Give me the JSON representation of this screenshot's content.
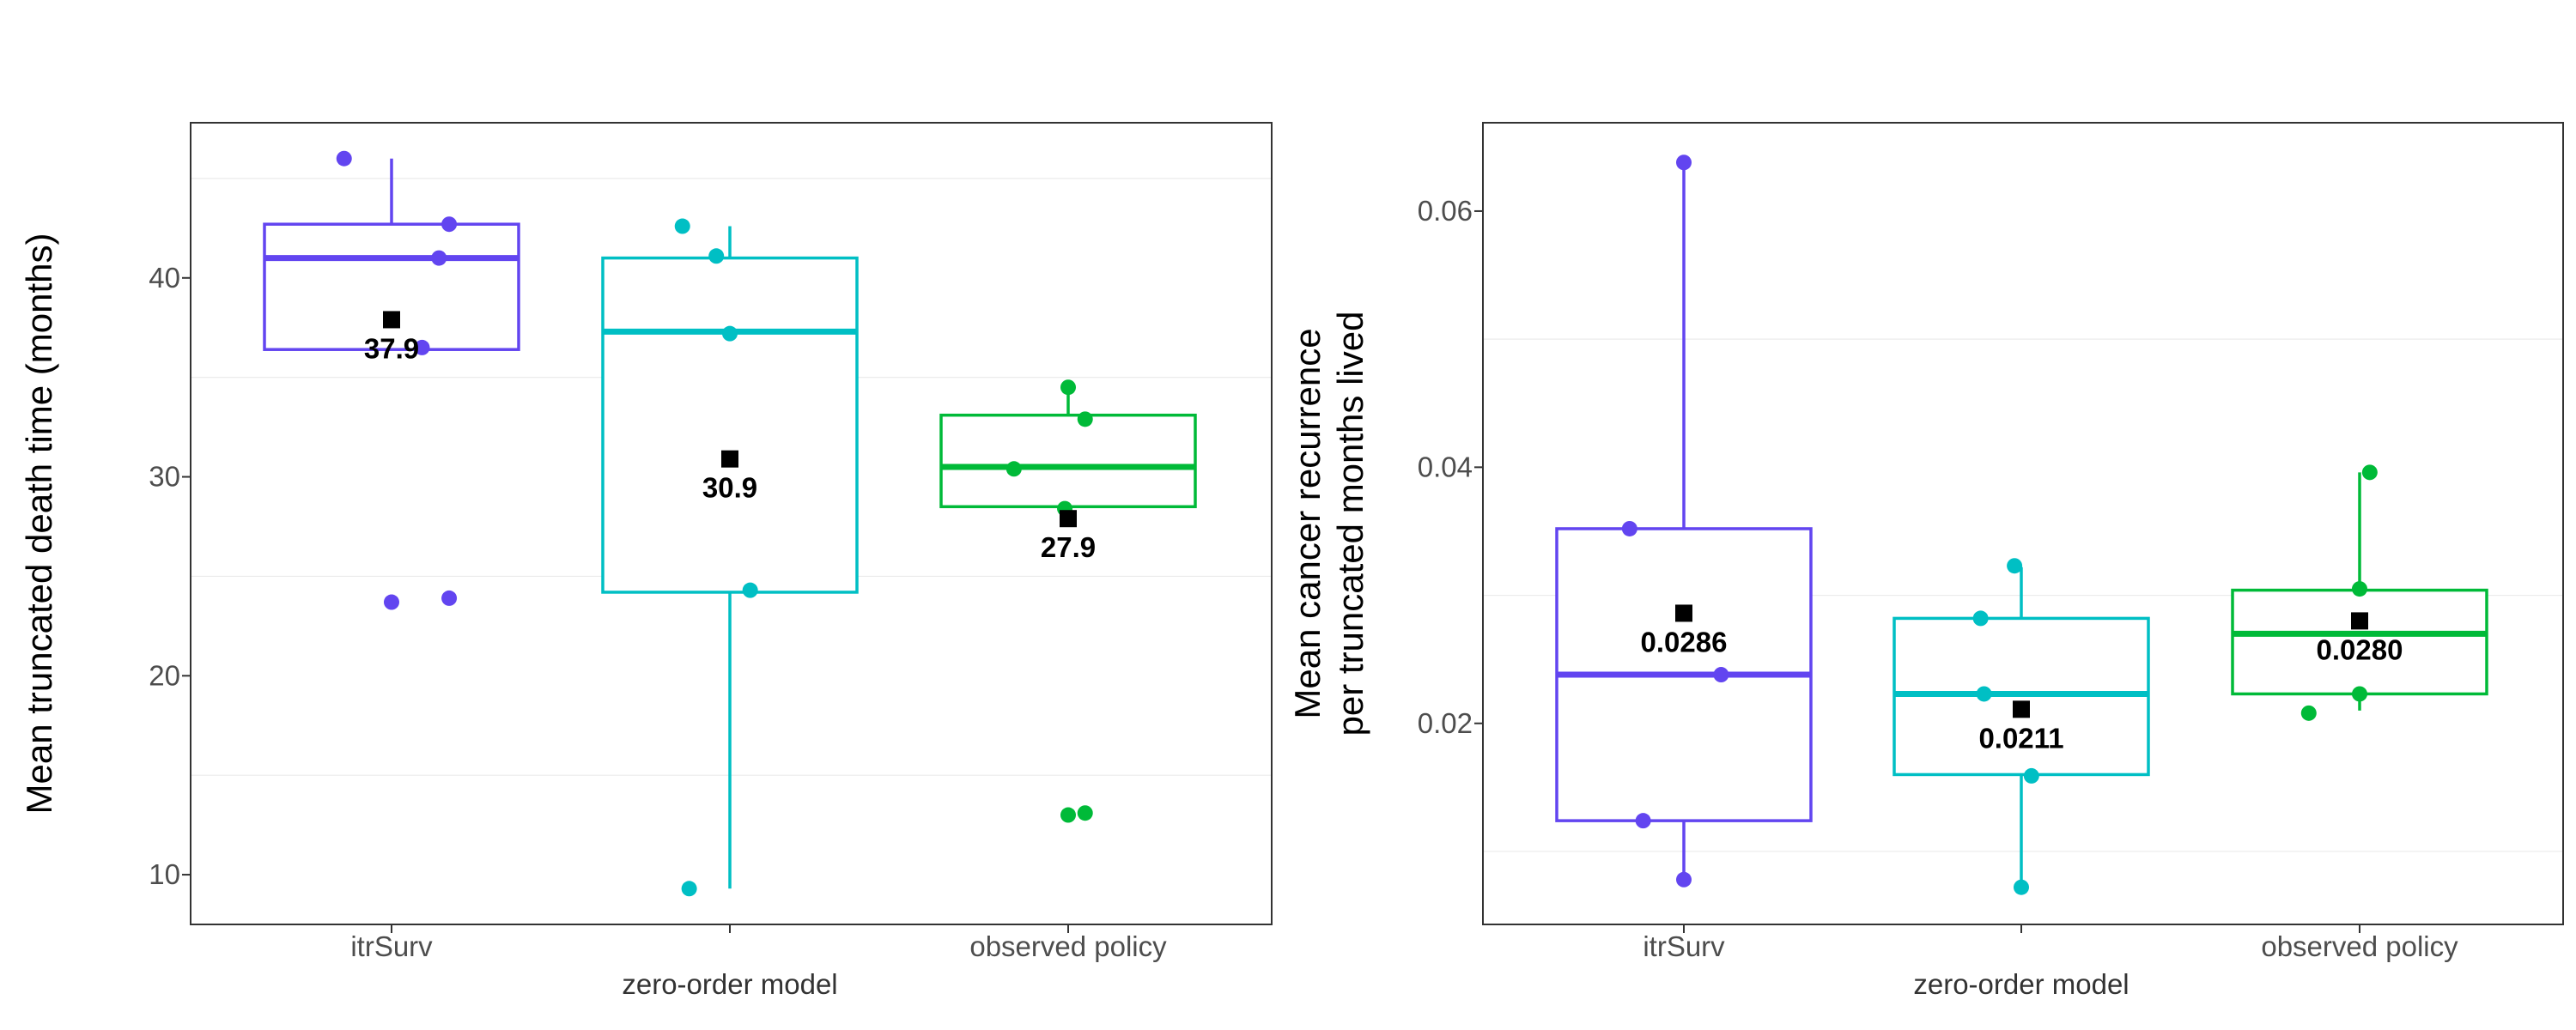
{
  "chart_data": [
    {
      "type": "boxplot",
      "xlabel": "",
      "ylabel": "Mean truncated death time (months)",
      "ylim": [
        7.5,
        47.8
      ],
      "yticks": [
        10,
        20,
        30,
        40
      ],
      "ytick_labels": [
        "10",
        "20",
        "30",
        "40"
      ],
      "minor_y_gridlines": [
        15,
        25,
        35,
        45
      ],
      "categories": [
        "itrSurv",
        "zero-order model",
        "observed policy"
      ],
      "category_label_rows": [
        0,
        1,
        0
      ],
      "colors": [
        "#6245F0",
        "#00BFC4",
        "#00BA38"
      ],
      "grid": true,
      "legend": "none",
      "boxes": [
        {
          "category": "itrSurv",
          "whisker_low": 36.4,
          "q1": 36.4,
          "median": 41.0,
          "q3": 42.7,
          "whisker_high": 46.0,
          "mean": 37.9,
          "mean_label": "37.9",
          "points": [
            [
              -0.14,
              46.0
            ],
            [
              0.17,
              42.7
            ],
            [
              0.14,
              41.0
            ],
            [
              0.09,
              36.5
            ],
            [
              0.0,
              23.7
            ],
            [
              0.17,
              23.9
            ]
          ]
        },
        {
          "category": "zero-order model",
          "whisker_low": 9.3,
          "q1": 24.2,
          "median": 37.3,
          "q3": 41.0,
          "whisker_high": 42.6,
          "mean": 30.9,
          "mean_label": "30.9",
          "points": [
            [
              -0.14,
              42.6
            ],
            [
              -0.04,
              41.1
            ],
            [
              0.0,
              37.2
            ],
            [
              0.06,
              24.3
            ],
            [
              -0.12,
              9.3
            ]
          ]
        },
        {
          "category": "observed policy",
          "whisker_low": 28.5,
          "q1": 28.5,
          "median": 30.5,
          "q3": 33.1,
          "whisker_high": 34.5,
          "mean": 27.9,
          "mean_label": "27.9",
          "points": [
            [
              0.0,
              34.5
            ],
            [
              0.05,
              32.9
            ],
            [
              -0.16,
              30.4
            ],
            [
              -0.01,
              28.4
            ],
            [
              0.0,
              13.0
            ],
            [
              0.05,
              13.1
            ]
          ]
        }
      ]
    },
    {
      "type": "boxplot",
      "xlabel": "",
      "ylabel": "Mean cancer recurrence per truncated months lived",
      "ylabel_lines": [
        "Mean cancer recurrence",
        "per truncated months lived"
      ],
      "ylim": [
        0.0043,
        0.0669
      ],
      "yticks": [
        0.02,
        0.04,
        0.06
      ],
      "ytick_labels": [
        "0.02",
        "0.04",
        "0.06"
      ],
      "minor_y_gridlines": [
        0.01,
        0.03,
        0.05
      ],
      "categories": [
        "itrSurv",
        "zero-order model",
        "observed policy"
      ],
      "category_label_rows": [
        0,
        1,
        0
      ],
      "colors": [
        "#6245F0",
        "#00BFC4",
        "#00BA38"
      ],
      "grid": true,
      "legend": "none",
      "boxes": [
        {
          "category": "itrSurv",
          "whisker_low": 0.0078,
          "q1": 0.0124,
          "median": 0.0238,
          "q3": 0.0352,
          "whisker_high": 0.0638,
          "mean": 0.0286,
          "mean_label": "0.0286",
          "points": [
            [
              0.0,
              0.0638
            ],
            [
              -0.16,
              0.0352
            ],
            [
              0.11,
              0.0238
            ],
            [
              -0.12,
              0.0124
            ],
            [
              0.0,
              0.0078
            ]
          ]
        },
        {
          "category": "zero-order model",
          "whisker_low": 0.0072,
          "q1": 0.016,
          "median": 0.0223,
          "q3": 0.0282,
          "whisker_high": 0.0322,
          "mean": 0.0211,
          "mean_label": "0.0211",
          "points": [
            [
              -0.02,
              0.0323
            ],
            [
              -0.12,
              0.0282
            ],
            [
              -0.11,
              0.0223
            ],
            [
              0.03,
              0.0159
            ],
            [
              0.0,
              0.0072
            ]
          ]
        },
        {
          "category": "observed policy",
          "whisker_low": 0.021,
          "q1": 0.0223,
          "median": 0.027,
          "q3": 0.0304,
          "whisker_high": 0.0396,
          "mean": 0.028,
          "mean_label": "0.0280",
          "points": [
            [
              0.03,
              0.0396
            ],
            [
              0.0,
              0.0305
            ],
            [
              0.0,
              0.0223
            ],
            [
              -0.15,
              0.0208
            ]
          ]
        }
      ]
    }
  ]
}
